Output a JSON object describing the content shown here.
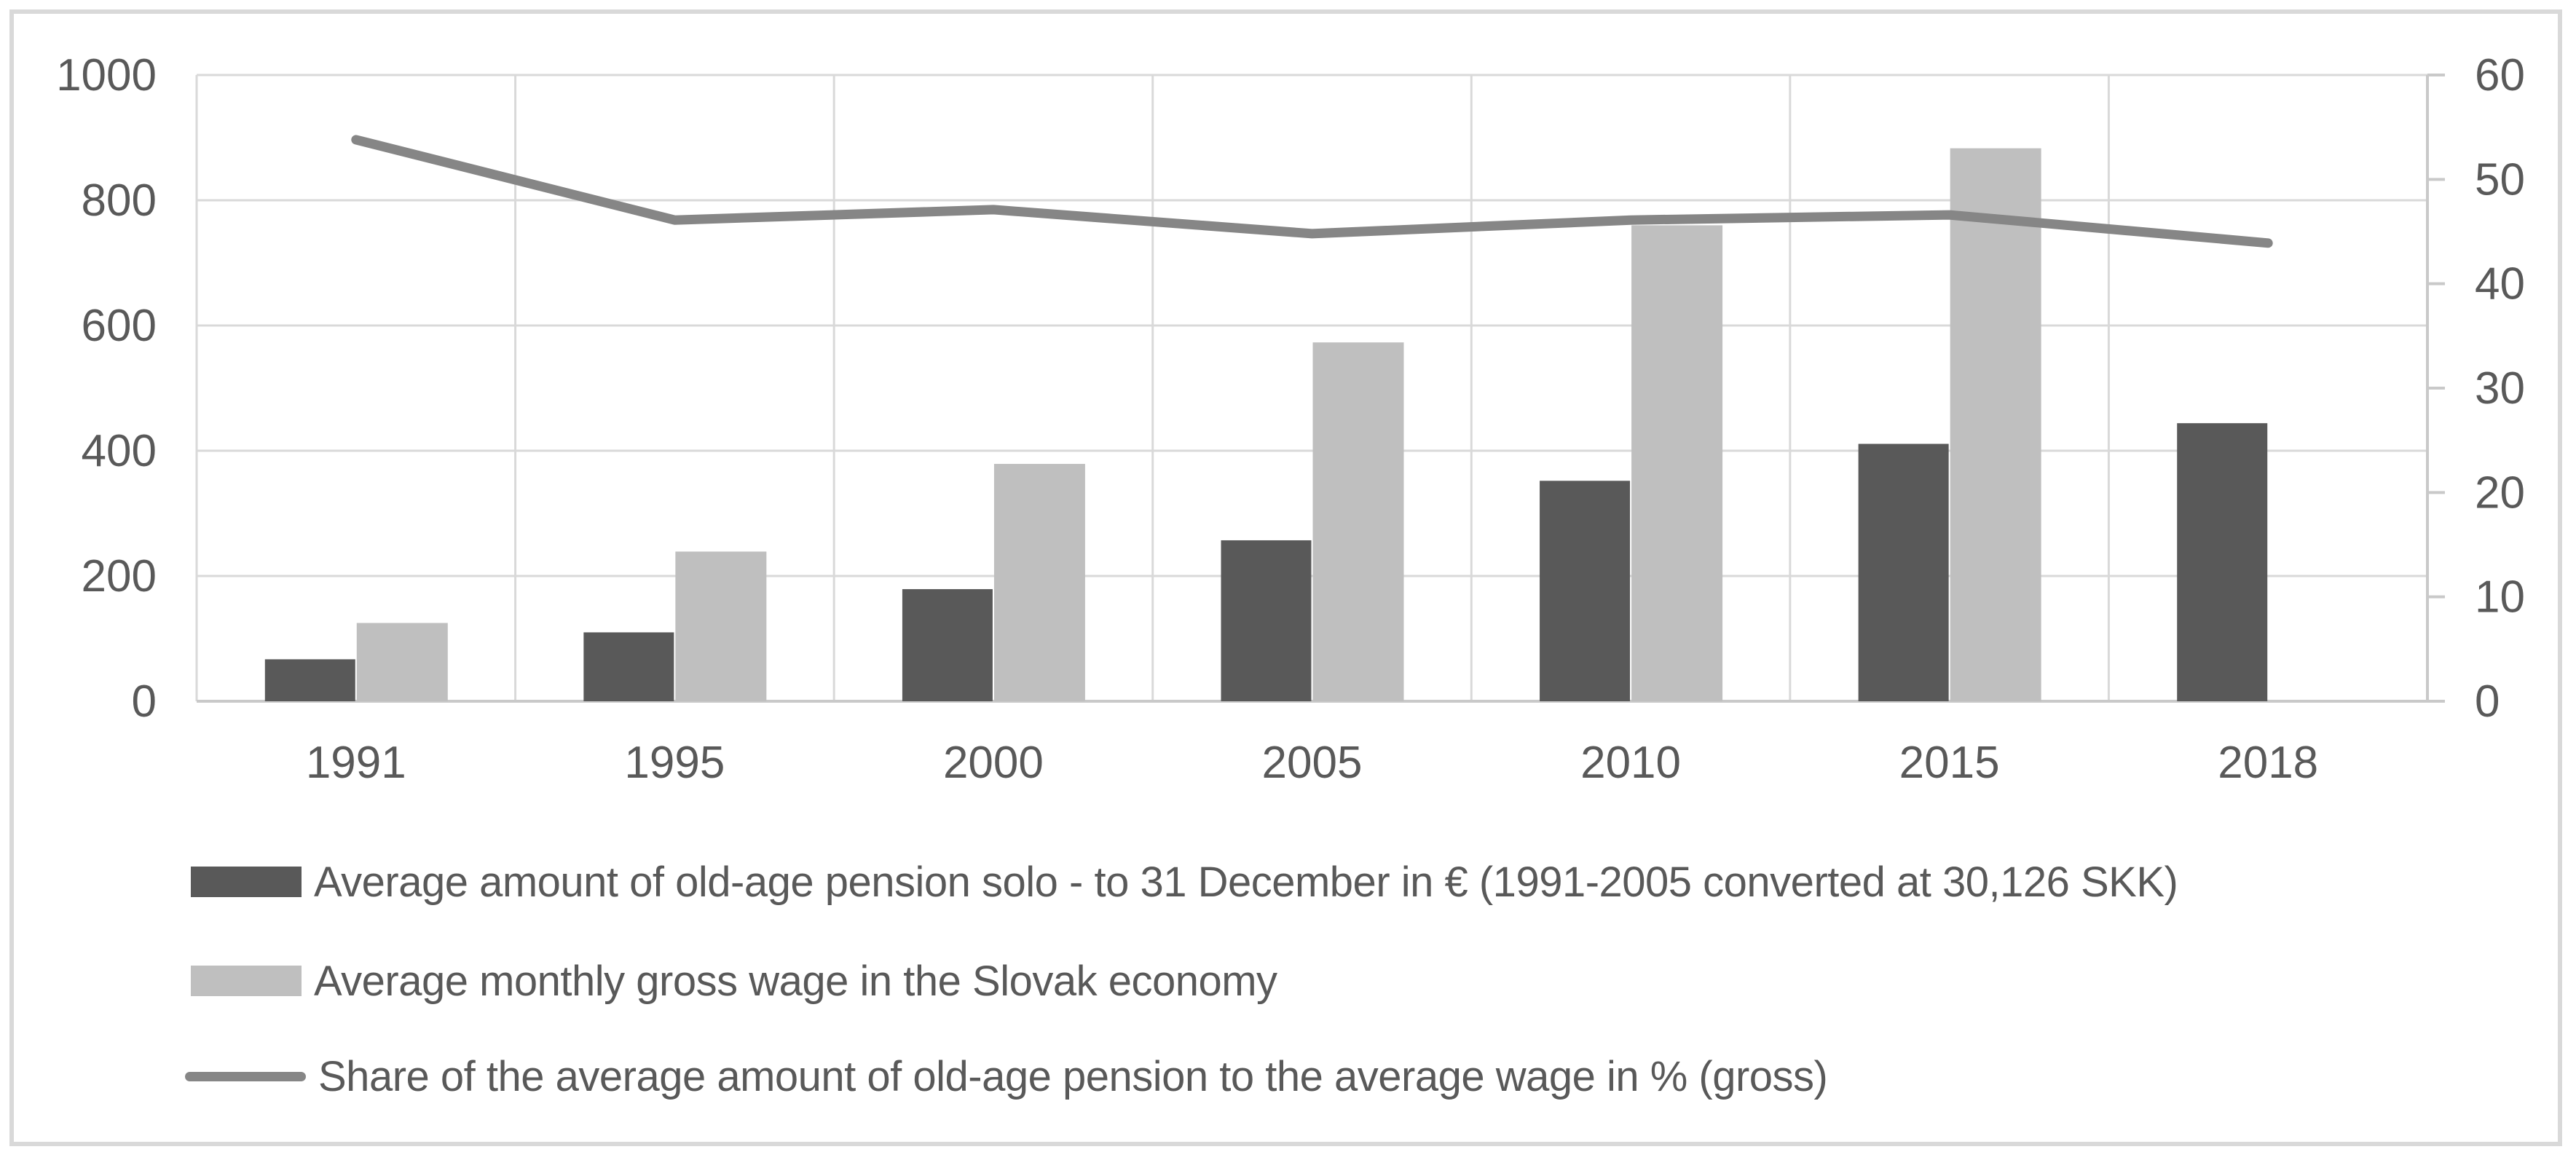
{
  "chart_data": {
    "type": "bar+line",
    "title": "",
    "categories": [
      "1991",
      "1995",
      "2000",
      "2005",
      "2010",
      "2015",
      "2018"
    ],
    "series": [
      {
        "name": "Average amount of old-age pension solo - to 31 December in € (1991-2005 converted at 30,126 SKK)",
        "type": "bar",
        "axis": "left",
        "values": [
          67,
          110,
          179,
          257,
          352,
          411,
          444
        ]
      },
      {
        "name": "Average monthly gross wage in the Slovak economy",
        "type": "bar",
        "axis": "left",
        "values": [
          125,
          239,
          379,
          573,
          760,
          883,
          null
        ]
      },
      {
        "name": "Share of the average amount of old-age pension to the average wage in % (gross)",
        "type": "line",
        "axis": "right",
        "values": [
          53.8,
          46.1,
          47.1,
          44.8,
          46.1,
          46.6,
          43.9
        ]
      }
    ],
    "left_axis": {
      "min": 0,
      "max": 1000,
      "tick_labels": [
        "0",
        "200",
        "400",
        "600",
        "800",
        "1000"
      ]
    },
    "right_axis": {
      "min": 0,
      "max": 60,
      "tick_labels": [
        "0",
        "10",
        "20",
        "30",
        "40",
        "50",
        "60"
      ]
    },
    "grid": "horizontal-and-vertical-boundaries",
    "legend_position": "bottom-left",
    "legend": [
      {
        "label": "Average amount of old-age pension solo - to 31 December in € (1991-2005 converted at 30,126 SKK)",
        "swatch": "dark-bar"
      },
      {
        "label": "Average monthly gross wage in the Slovak economy",
        "swatch": "light-bar"
      },
      {
        "label": "Share of the average amount of old-age pension to the average wage in % (gross)",
        "swatch": "line"
      }
    ],
    "colors": {
      "pension_bar": "#595959",
      "wage_bar": "#bfbfbf",
      "share_line": "#868686",
      "gridline": "#d9d9d9",
      "axis_line": "#c9c9c9",
      "axis_text": "#595959",
      "frame_border": "#d9d9d9",
      "background": "#ffffff"
    }
  }
}
